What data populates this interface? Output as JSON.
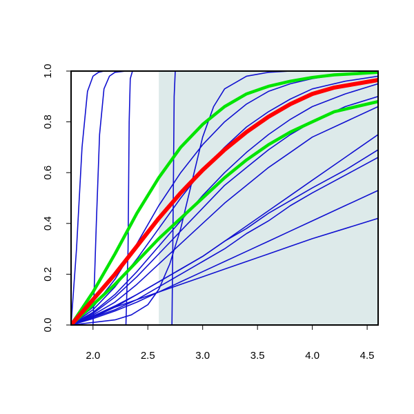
{
  "chart_data": {
    "type": "line",
    "title": "",
    "xlabel": "",
    "ylabel": "",
    "xlim": [
      1.8,
      4.6
    ],
    "ylim": [
      0.0,
      1.0
    ],
    "xticks": [
      2.0,
      2.5,
      3.0,
      3.5,
      4.0,
      4.5
    ],
    "yticks": [
      0.0,
      0.2,
      0.4,
      0.6,
      0.8,
      1.0
    ],
    "xtick_labels": [
      "2.0",
      "2.5",
      "3.0",
      "3.5",
      "4.0",
      "4.5"
    ],
    "ytick_labels": [
      "0.0",
      "0.2",
      "0.4",
      "0.6",
      "0.8",
      "1.0"
    ],
    "grid": false,
    "legend": "none",
    "shaded_region": {
      "x_from": 2.6,
      "x_to": 4.6,
      "color": "#ddeaea"
    },
    "colors": {
      "thin": "#1010d0",
      "central": "#ff0000",
      "band": "#00e400",
      "frame": "#000000"
    },
    "series": [
      {
        "x": [
          1.8,
          1.85,
          1.9,
          1.95,
          2.0,
          2.05,
          2.1,
          2.2,
          2.4,
          4.6
        ],
        "values": [
          0.0,
          0.3,
          0.7,
          0.92,
          0.98,
          0.995,
          1.0,
          1.0,
          1.0,
          1.0
        ]
      },
      {
        "x": [
          2.0,
          2.03,
          2.06,
          2.1,
          2.15,
          2.2,
          2.3,
          2.5,
          4.6
        ],
        "values": [
          0.0,
          0.4,
          0.75,
          0.93,
          0.98,
          0.995,
          1.0,
          1.0,
          1.0
        ]
      },
      {
        "x": [
          2.3,
          2.32,
          2.33,
          2.34,
          2.36,
          2.4,
          4.6
        ],
        "values": [
          0.0,
          0.3,
          0.8,
          0.97,
          1.0,
          1.0,
          1.0
        ]
      },
      {
        "x": [
          2.72,
          2.73,
          2.74,
          2.75,
          2.76,
          4.6
        ],
        "values": [
          0.0,
          0.4,
          0.9,
          1.0,
          1.0,
          1.0
        ]
      },
      {
        "x": [
          1.8,
          2.0,
          2.2,
          2.35,
          2.5,
          2.6,
          2.7,
          2.8,
          2.9,
          3.0,
          3.1,
          3.2,
          3.4,
          3.6,
          3.8,
          4.6
        ],
        "values": [
          0.0,
          0.01,
          0.02,
          0.04,
          0.08,
          0.14,
          0.24,
          0.38,
          0.56,
          0.74,
          0.86,
          0.93,
          0.98,
          0.995,
          1.0,
          1.0
        ]
      },
      {
        "x": [
          1.8,
          2.0,
          2.2,
          2.4,
          2.6,
          2.8,
          3.0,
          3.2,
          3.4,
          3.6,
          3.8,
          4.0,
          4.3,
          4.6
        ],
        "values": [
          0.0,
          0.07,
          0.18,
          0.32,
          0.47,
          0.6,
          0.71,
          0.8,
          0.87,
          0.92,
          0.95,
          0.97,
          0.99,
          1.0
        ]
      },
      {
        "x": [
          1.8,
          2.0,
          2.2,
          2.4,
          2.6,
          2.8,
          3.0,
          3.2,
          3.4,
          3.6,
          3.8,
          4.0,
          4.3,
          4.6
        ],
        "values": [
          0.0,
          0.06,
          0.15,
          0.26,
          0.38,
          0.5,
          0.61,
          0.7,
          0.78,
          0.84,
          0.89,
          0.93,
          0.96,
          0.98
        ]
      },
      {
        "x": [
          1.8,
          2.0,
          2.2,
          2.4,
          2.6,
          2.8,
          3.0,
          3.2,
          3.4,
          3.6,
          3.8,
          4.0,
          4.3,
          4.6
        ],
        "values": [
          0.0,
          0.05,
          0.12,
          0.21,
          0.31,
          0.41,
          0.51,
          0.6,
          0.68,
          0.75,
          0.81,
          0.86,
          0.91,
          0.95
        ]
      },
      {
        "x": [
          1.8,
          2.0,
          2.2,
          2.4,
          2.6,
          2.8,
          3.0,
          3.2,
          3.4,
          3.6,
          3.8,
          4.0,
          4.3,
          4.6
        ],
        "values": [
          0.0,
          0.045,
          0.11,
          0.19,
          0.28,
          0.37,
          0.46,
          0.55,
          0.62,
          0.69,
          0.75,
          0.8,
          0.86,
          0.9
        ]
      },
      {
        "x": [
          1.8,
          2.0,
          2.2,
          2.4,
          2.6,
          2.8,
          3.0,
          3.2,
          3.4,
          3.6,
          3.8,
          4.0,
          4.3,
          4.6
        ],
        "values": [
          0.0,
          0.04,
          0.09,
          0.16,
          0.24,
          0.32,
          0.4,
          0.48,
          0.55,
          0.62,
          0.68,
          0.74,
          0.8,
          0.86
        ]
      },
      {
        "x": [
          1.8,
          2.0,
          2.2,
          2.4,
          2.6,
          2.8,
          3.0,
          3.2,
          3.4,
          3.6,
          3.8,
          4.0,
          4.3,
          4.6
        ],
        "values": [
          0.0,
          0.03,
          0.07,
          0.12,
          0.17,
          0.22,
          0.27,
          0.33,
          0.38,
          0.44,
          0.49,
          0.54,
          0.61,
          0.69
        ]
      },
      {
        "x": [
          1.8,
          2.0,
          2.2,
          2.4,
          2.6,
          2.8,
          3.0,
          3.2,
          3.4,
          3.6,
          3.8,
          4.0,
          4.3,
          4.6
        ],
        "values": [
          0.0,
          0.035,
          0.075,
          0.12,
          0.17,
          0.22,
          0.27,
          0.33,
          0.39,
          0.45,
          0.51,
          0.57,
          0.66,
          0.75
        ]
      },
      {
        "x": [
          1.8,
          2.0,
          2.2,
          2.4,
          2.6,
          2.8,
          3.0,
          3.2,
          3.4,
          3.6,
          3.8,
          4.0,
          4.3,
          4.6
        ],
        "values": [
          0.0,
          0.03,
          0.06,
          0.1,
          0.15,
          0.2,
          0.25,
          0.3,
          0.36,
          0.41,
          0.47,
          0.52,
          0.59,
          0.66
        ]
      },
      {
        "x": [
          1.8,
          2.0,
          2.2,
          2.4,
          2.6,
          2.8,
          3.0,
          3.2,
          3.4,
          3.6,
          3.8,
          4.0,
          4.3,
          4.6
        ],
        "values": [
          0.0,
          0.025,
          0.055,
          0.09,
          0.13,
          0.17,
          0.21,
          0.25,
          0.29,
          0.33,
          0.37,
          0.41,
          0.47,
          0.53
        ]
      },
      {
        "x": [
          1.8,
          2.0,
          2.2,
          2.4,
          2.6,
          2.8,
          3.0,
          3.2,
          3.4,
          3.6,
          3.8,
          4.0,
          4.3,
          4.6
        ],
        "values": [
          0.0,
          0.035,
          0.07,
          0.1,
          0.13,
          0.16,
          0.19,
          0.22,
          0.25,
          0.28,
          0.31,
          0.34,
          0.38,
          0.42
        ]
      },
      {
        "style": "band",
        "x": [
          1.8,
          2.0,
          2.2,
          2.4,
          2.6,
          2.8,
          3.0,
          3.2,
          3.4,
          3.6,
          3.8,
          4.0,
          4.2,
          4.4,
          4.6
        ],
        "values": [
          0.0,
          0.13,
          0.28,
          0.44,
          0.58,
          0.7,
          0.79,
          0.86,
          0.91,
          0.94,
          0.96,
          0.975,
          0.985,
          0.99,
          0.995
        ]
      },
      {
        "style": "central",
        "x": [
          1.8,
          2.0,
          2.2,
          2.4,
          2.6,
          2.8,
          3.0,
          3.2,
          3.4,
          3.6,
          3.8,
          4.0,
          4.2,
          4.4,
          4.6
        ],
        "values": [
          0.0,
          0.1,
          0.2,
          0.31,
          0.42,
          0.52,
          0.61,
          0.69,
          0.76,
          0.82,
          0.87,
          0.91,
          0.935,
          0.95,
          0.965
        ]
      },
      {
        "style": "band",
        "x": [
          1.8,
          2.0,
          2.2,
          2.4,
          2.6,
          2.8,
          3.0,
          3.2,
          3.4,
          3.6,
          3.8,
          4.0,
          4.2,
          4.4,
          4.6
        ],
        "values": [
          0.0,
          0.08,
          0.16,
          0.25,
          0.34,
          0.42,
          0.5,
          0.58,
          0.65,
          0.71,
          0.76,
          0.8,
          0.84,
          0.86,
          0.88
        ]
      }
    ]
  }
}
